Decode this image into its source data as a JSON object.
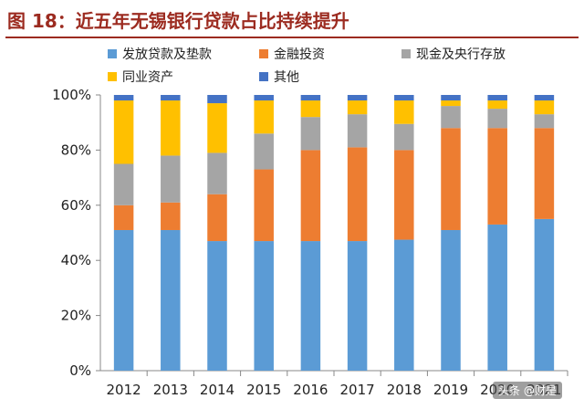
{
  "title": "图 18：近五年无锡银行贷款占比持续提升",
  "watermark": "头条 @财是",
  "chart_data": {
    "type": "bar",
    "stacked": true,
    "categories": [
      "2012",
      "2013",
      "2014",
      "2015",
      "2016",
      "2017",
      "2018",
      "2019",
      "2020",
      "2021"
    ],
    "series": [
      {
        "name": "发放贷款及垫款",
        "color": "#5b9bd5",
        "values": [
          51,
          51,
          47,
          47,
          47,
          47,
          47.5,
          51,
          53,
          55
        ]
      },
      {
        "name": "金融投资",
        "color": "#ed7d31",
        "values": [
          9,
          10,
          17,
          26,
          33,
          34,
          32.5,
          37,
          35,
          33
        ]
      },
      {
        "name": "现金及央行存放",
        "color": "#a5a5a5",
        "values": [
          15,
          17,
          15,
          13,
          12,
          12,
          9.5,
          8,
          7,
          5
        ]
      },
      {
        "name": "同业资产",
        "color": "#ffc000",
        "values": [
          23,
          20,
          18,
          12,
          6,
          5,
          8.5,
          2,
          3,
          5
        ]
      },
      {
        "name": "其他",
        "color": "#4472c4",
        "values": [
          2,
          2,
          3,
          2,
          2,
          2,
          2,
          2,
          2,
          2
        ]
      }
    ],
    "yticks": [
      "0%",
      "20%",
      "40%",
      "60%",
      "80%",
      "100%"
    ],
    "ylim": [
      0,
      100
    ],
    "legend_position": "top",
    "grid": false
  }
}
